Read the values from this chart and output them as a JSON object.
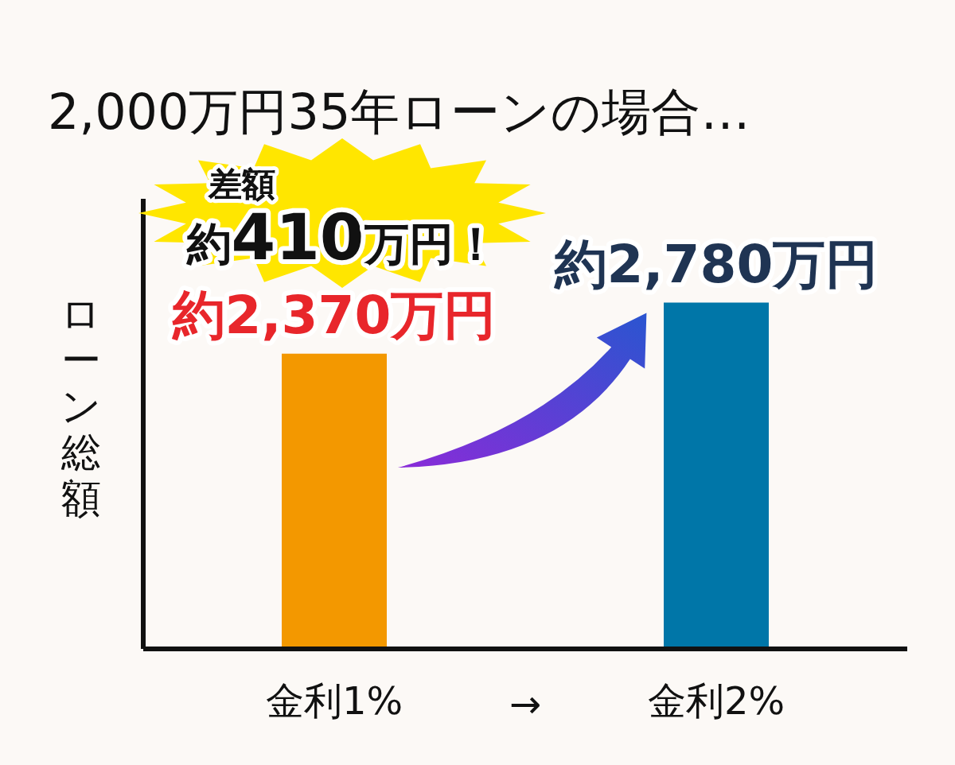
{
  "chart_data": {
    "type": "bar",
    "title": "2,000万円35年ローンの場合…",
    "ylabel": "ローン総額",
    "categories": [
      "金利1%",
      "金利2%"
    ],
    "values": [
      2370,
      2780
    ],
    "colors": [
      "#f39800",
      "#0076a8"
    ],
    "value_labels": [
      "約2,370万円",
      "約2,780万円"
    ],
    "annotations": [
      "差額",
      "約410万円！",
      "→"
    ],
    "tick_labels": "x"
  }
}
